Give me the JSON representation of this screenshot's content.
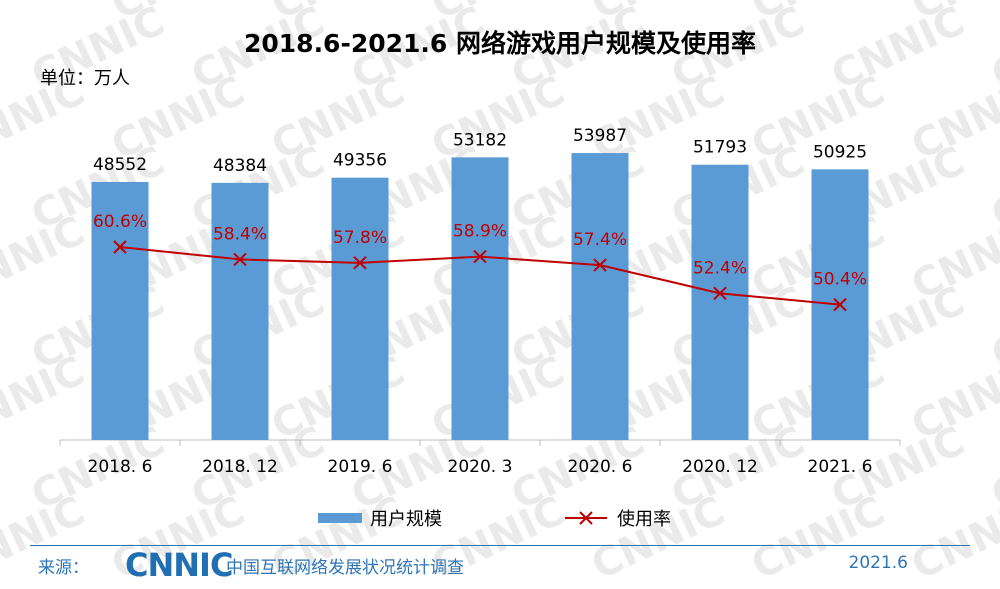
{
  "watermark_text": "CNNIC",
  "unit_label": "单位：万人",
  "chart_data": {
    "type": "bar",
    "title": "2018.6-2021.6 网络游戏用户规模及使用率",
    "categories": [
      "2018. 6",
      "2018. 12",
      "2019. 6",
      "2020. 3",
      "2020. 6",
      "2020. 12",
      "2021. 6"
    ],
    "series": [
      {
        "name": "用户规模",
        "type": "bar",
        "color": "#5b9bd5",
        "values": [
          48552,
          48384,
          49356,
          53182,
          53987,
          51793,
          50925
        ],
        "labels": [
          "48552",
          "48384",
          "49356",
          "53182",
          "53987",
          "51793",
          "50925"
        ]
      },
      {
        "name": "使用率",
        "type": "line",
        "color": "#c00000",
        "unit": "%",
        "values": [
          60.6,
          58.4,
          57.8,
          58.9,
          57.4,
          52.4,
          50.4
        ],
        "labels": [
          "60.6%",
          "58.4%",
          "57.8%",
          "58.9%",
          "57.4%",
          "52.4%",
          "50.4%"
        ]
      }
    ],
    "ylim_bar": [
      0,
      60000
    ],
    "ylim_line": [
      0,
      100
    ],
    "grid": false,
    "legend_position": "bottom"
  },
  "footer": {
    "source_label": "来源：",
    "logo_text": "CNNIC",
    "survey_name": "中国互联网络发展状况统计调查",
    "date": "2021.6"
  }
}
